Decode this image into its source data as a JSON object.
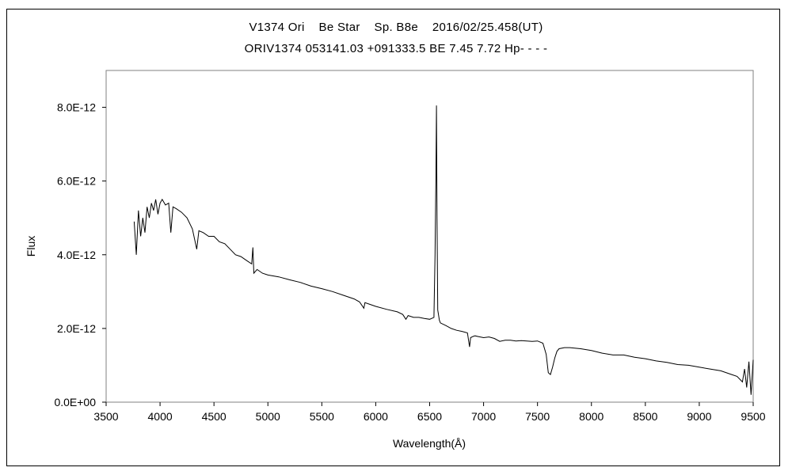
{
  "chart_data": {
    "type": "line",
    "title": "V1374 Ori    Be Star    Sp. B8e    2016/02/25.458(UT)",
    "subtitle": "ORIV1374 053141.03 +091333.5 BE 7.45 7.72 Hp- - - -",
    "xlabel": "Wavelength(Å)",
    "ylabel": "Flux",
    "xlim": [
      3500,
      9500
    ],
    "ylim": [
      0,
      9e-12
    ],
    "x_ticks": [
      3500,
      4000,
      4500,
      5000,
      5500,
      6000,
      6500,
      7000,
      7500,
      8000,
      8500,
      9000,
      9500
    ],
    "x_tick_labels": [
      "3500",
      "4000",
      "4500",
      "5000",
      "5500",
      "6000",
      "6500",
      "7000",
      "7500",
      "8000",
      "8500",
      "9000",
      "9500"
    ],
    "y_ticks": [
      0,
      2e-12,
      4e-12,
      6e-12,
      8e-12
    ],
    "y_tick_labels": [
      "0.0E+00",
      "2.0E-12",
      "4.0E-12",
      "6.0E-12",
      "8.0E-12"
    ],
    "grid": false,
    "legend": "none",
    "line_color": "#000000",
    "series": [
      {
        "x": [
          3760,
          3780,
          3800,
          3820,
          3840,
          3860,
          3880,
          3900,
          3920,
          3940,
          3960,
          3980,
          4000,
          4020,
          4050,
          4080,
          4100,
          4120,
          4150,
          4200,
          4250,
          4300,
          4340,
          4360,
          4400,
          4450,
          4500,
          4550,
          4600,
          4650,
          4700,
          4750,
          4800,
          4850,
          4861,
          4870,
          4900,
          4950,
          5000,
          5100,
          5200,
          5300,
          5400,
          5500,
          5600,
          5700,
          5800,
          5850,
          5890,
          5900,
          5950,
          6000,
          6100,
          6200,
          6250,
          6280,
          6300,
          6350,
          6400,
          6450,
          6500,
          6540,
          6550,
          6558,
          6563,
          6568,
          6575,
          6590,
          6600,
          6650,
          6700,
          6750,
          6800,
          6850,
          6870,
          6880,
          6900,
          6920,
          6950,
          7000,
          7050,
          7100,
          7150,
          7200,
          7250,
          7300,
          7350,
          7400,
          7450,
          7500,
          7550,
          7580,
          7600,
          7620,
          7640,
          7660,
          7680,
          7700,
          7750,
          7800,
          7900,
          8000,
          8100,
          8200,
          8300,
          8400,
          8500,
          8600,
          8700,
          8800,
          8900,
          9000,
          9100,
          9200,
          9300,
          9350,
          9400,
          9420,
          9440,
          9460,
          9480,
          9500
        ],
        "y": [
          4.9e-12,
          4e-12,
          5.2e-12,
          4.5e-12,
          5e-12,
          4.6e-12,
          5.3e-12,
          5e-12,
          5.4e-12,
          5.2e-12,
          5.5e-12,
          5.1e-12,
          5.4e-12,
          5.5e-12,
          5.35e-12,
          5.4e-12,
          4.6e-12,
          5.3e-12,
          5.25e-12,
          5.15e-12,
          5e-12,
          4.7e-12,
          4.15e-12,
          4.65e-12,
          4.6e-12,
          4.5e-12,
          4.5e-12,
          4.35e-12,
          4.3e-12,
          4.15e-12,
          4e-12,
          3.95e-12,
          3.85e-12,
          3.75e-12,
          4.2e-12,
          3.5e-12,
          3.6e-12,
          3.5e-12,
          3.45e-12,
          3.4e-12,
          3.32e-12,
          3.25e-12,
          3.15e-12,
          3.08e-12,
          3e-12,
          2.9e-12,
          2.8e-12,
          2.72e-12,
          2.55e-12,
          2.7e-12,
          2.65e-12,
          2.6e-12,
          2.52e-12,
          2.45e-12,
          2.38e-12,
          2.25e-12,
          2.35e-12,
          2.3e-12,
          2.3e-12,
          2.27e-12,
          2.25e-12,
          2.3e-12,
          4e-12,
          6.1e-12,
          8.05e-12,
          5e-12,
          2.5e-12,
          2.22e-12,
          2.15e-12,
          2.08e-12,
          2e-12,
          1.95e-12,
          1.92e-12,
          1.88e-12,
          1.5e-12,
          1.75e-12,
          1.78e-12,
          1.8e-12,
          1.78e-12,
          1.75e-12,
          1.77e-12,
          1.73e-12,
          1.65e-12,
          1.68e-12,
          1.68e-12,
          1.66e-12,
          1.67e-12,
          1.66e-12,
          1.65e-12,
          1.66e-12,
          1.6e-12,
          1.3e-12,
          8e-13,
          7.5e-13,
          9.5e-13,
          1.2e-12,
          1.38e-12,
          1.45e-12,
          1.48e-12,
          1.48e-12,
          1.45e-12,
          1.4e-12,
          1.33e-12,
          1.28e-12,
          1.28e-12,
          1.22e-12,
          1.18e-12,
          1.12e-12,
          1.08e-12,
          1.02e-12,
          1e-12,
          9.5e-13,
          9e-13,
          8.5e-13,
          7.5e-13,
          7e-13,
          5.5e-13,
          9e-13,
          4e-13,
          1.1e-12,
          2e-13,
          1.15e-12
        ]
      }
    ]
  }
}
